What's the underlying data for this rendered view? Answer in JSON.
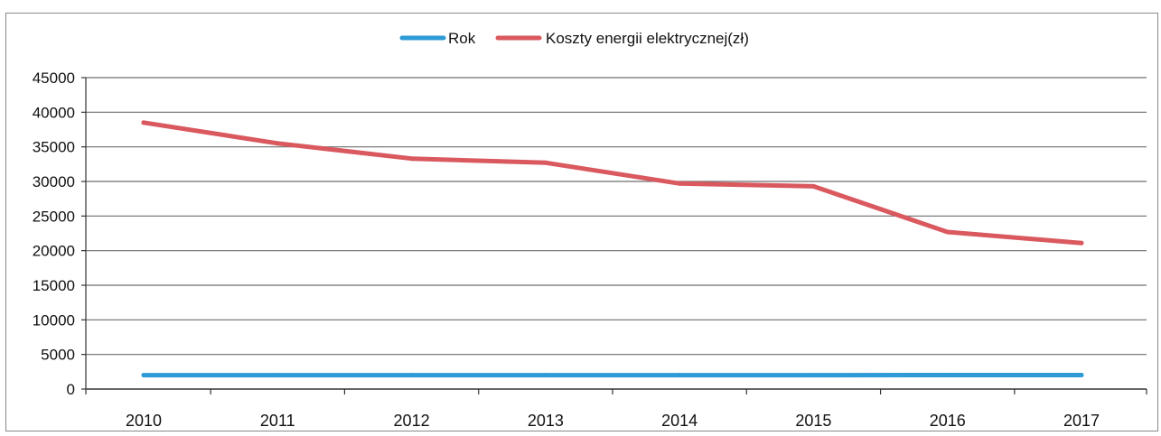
{
  "chart_data": {
    "type": "line",
    "title": "",
    "xlabel": "",
    "ylabel": "",
    "categories": [
      "2010",
      "2011",
      "2012",
      "2013",
      "2014",
      "2015",
      "2016",
      "2017"
    ],
    "ylim": [
      0,
      45000
    ],
    "yticks": [
      "0",
      "5000",
      "10000",
      "15000",
      "20000",
      "25000",
      "30000",
      "35000",
      "40000",
      "45000"
    ],
    "grid": true,
    "legend_position": "top-center",
    "series": [
      {
        "name": "Rok",
        "color": "#2e9bd6",
        "values": [
          2010,
          2011,
          2012,
          2013,
          2014,
          2015,
          2016,
          2017
        ]
      },
      {
        "name": "Koszty energii elektrycznej(zł)",
        "color": "#d9595f",
        "values": [
          38500,
          35500,
          33300,
          32700,
          29700,
          29300,
          22700,
          21100
        ]
      }
    ]
  }
}
